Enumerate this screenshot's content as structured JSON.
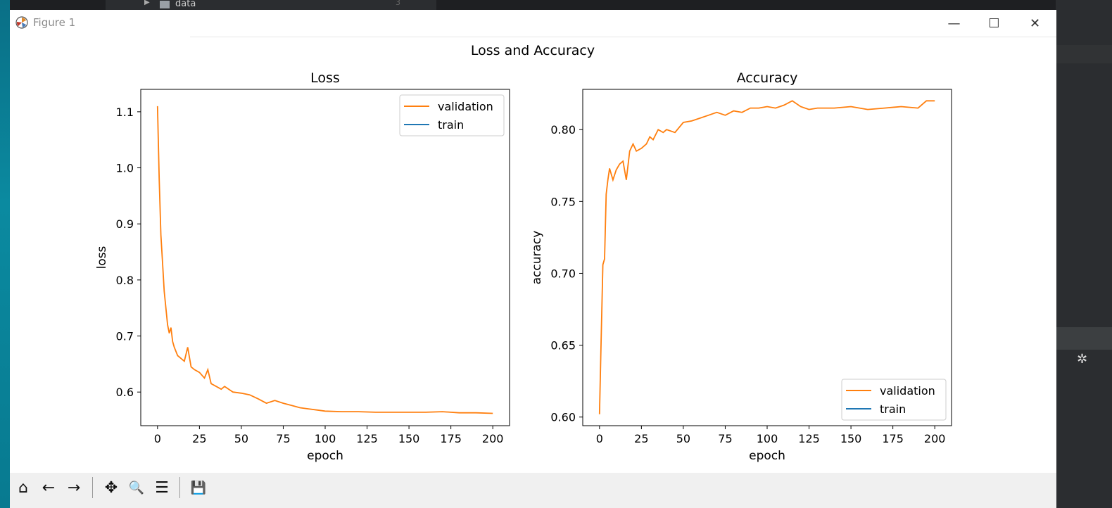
{
  "ide": {
    "tree_label": "data",
    "tree_count": "3"
  },
  "window": {
    "title": "Figure 1",
    "minimize": "—",
    "maximize": "☐",
    "close": "✕"
  },
  "figure": {
    "suptitle": "Loss and Accuracy"
  },
  "toolbar": {
    "buttons": [
      {
        "name": "home",
        "glyph": "⌂"
      },
      {
        "name": "back",
        "glyph": "←"
      },
      {
        "name": "forward",
        "glyph": "→"
      },
      {
        "name": "pan",
        "glyph": "✥"
      },
      {
        "name": "zoom",
        "glyph": "🔍"
      },
      {
        "name": "configure",
        "glyph": "☰"
      },
      {
        "name": "save",
        "glyph": "💾"
      }
    ]
  },
  "colors": {
    "validation": "#ff7f0e",
    "train": "#1f77b4"
  },
  "chart_data": [
    {
      "type": "line",
      "title": "Loss",
      "xlabel": "epoch",
      "ylabel": "loss",
      "xlim": [
        -10,
        210
      ],
      "ylim": [
        0.54,
        1.14
      ],
      "xticks": [
        0,
        25,
        50,
        75,
        100,
        125,
        150,
        175,
        200
      ],
      "yticks": [
        0.6,
        0.7,
        0.8,
        0.9,
        1.0,
        1.1
      ],
      "ytick_labels": [
        "0.6",
        "0.7",
        "0.8",
        "0.9",
        "1.0",
        "1.1"
      ],
      "legend": {
        "position": "upper-right",
        "entries": [
          "validation",
          "train"
        ]
      },
      "series": [
        {
          "name": "validation",
          "x": [
            0,
            1,
            2,
            3,
            4,
            5,
            6,
            7,
            8,
            9,
            10,
            12,
            14,
            16,
            18,
            20,
            22,
            25,
            28,
            30,
            32,
            35,
            38,
            40,
            45,
            50,
            55,
            60,
            65,
            70,
            75,
            80,
            85,
            90,
            95,
            100,
            110,
            120,
            130,
            140,
            150,
            160,
            170,
            180,
            190,
            200
          ],
          "y": [
            1.11,
            0.98,
            0.88,
            0.83,
            0.78,
            0.75,
            0.72,
            0.705,
            0.715,
            0.69,
            0.68,
            0.665,
            0.66,
            0.655,
            0.68,
            0.645,
            0.64,
            0.635,
            0.625,
            0.64,
            0.615,
            0.61,
            0.605,
            0.61,
            0.6,
            0.598,
            0.595,
            0.588,
            0.58,
            0.585,
            0.58,
            0.576,
            0.572,
            0.57,
            0.568,
            0.566,
            0.565,
            0.565,
            0.564,
            0.564,
            0.564,
            0.564,
            0.565,
            0.563,
            0.563,
            0.562
          ]
        },
        {
          "name": "train",
          "x": [],
          "y": []
        }
      ]
    },
    {
      "type": "line",
      "title": "Accuracy",
      "xlabel": "epoch",
      "ylabel": "accuracy",
      "xlim": [
        -10,
        210
      ],
      "ylim": [
        0.594,
        0.828
      ],
      "xticks": [
        0,
        25,
        50,
        75,
        100,
        125,
        150,
        175,
        200
      ],
      "yticks": [
        0.6,
        0.65,
        0.7,
        0.75,
        0.8
      ],
      "ytick_labels": [
        "0.60",
        "0.65",
        "0.70",
        "0.75",
        "0.80"
      ],
      "legend": {
        "position": "lower-right",
        "entries": [
          "validation",
          "train"
        ]
      },
      "series": [
        {
          "name": "validation",
          "x": [
            0,
            1,
            2,
            3,
            4,
            5,
            6,
            8,
            10,
            12,
            14,
            16,
            18,
            20,
            22,
            25,
            28,
            30,
            32,
            35,
            38,
            40,
            45,
            50,
            55,
            60,
            65,
            70,
            75,
            80,
            85,
            90,
            95,
            100,
            105,
            110,
            115,
            120,
            125,
            130,
            140,
            150,
            160,
            170,
            180,
            190,
            195,
            200
          ],
          "y": [
            0.602,
            0.655,
            0.706,
            0.71,
            0.755,
            0.765,
            0.773,
            0.765,
            0.772,
            0.776,
            0.778,
            0.765,
            0.785,
            0.79,
            0.785,
            0.787,
            0.79,
            0.795,
            0.793,
            0.8,
            0.798,
            0.8,
            0.798,
            0.805,
            0.806,
            0.808,
            0.81,
            0.812,
            0.81,
            0.813,
            0.812,
            0.815,
            0.815,
            0.816,
            0.815,
            0.817,
            0.82,
            0.816,
            0.814,
            0.815,
            0.815,
            0.816,
            0.814,
            0.815,
            0.816,
            0.815,
            0.82,
            0.82
          ]
        },
        {
          "name": "train",
          "x": [],
          "y": []
        }
      ]
    }
  ]
}
